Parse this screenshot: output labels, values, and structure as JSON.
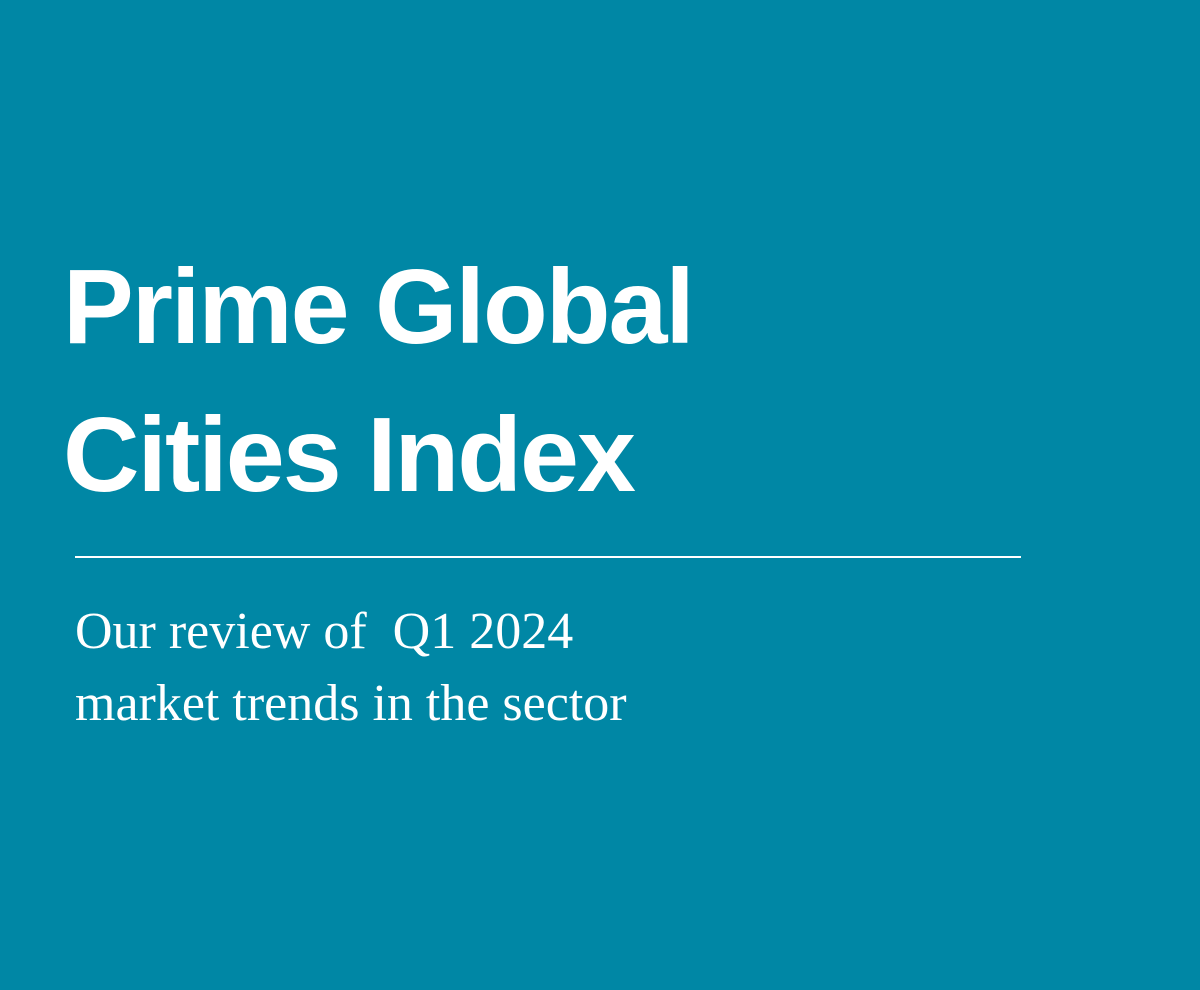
{
  "title": {
    "lines": [
      "Prime Global",
      "Cities Index"
    ]
  },
  "subtitle": {
    "lines": [
      "Our review of  Q1 2024",
      "market trends in the sector"
    ]
  }
}
